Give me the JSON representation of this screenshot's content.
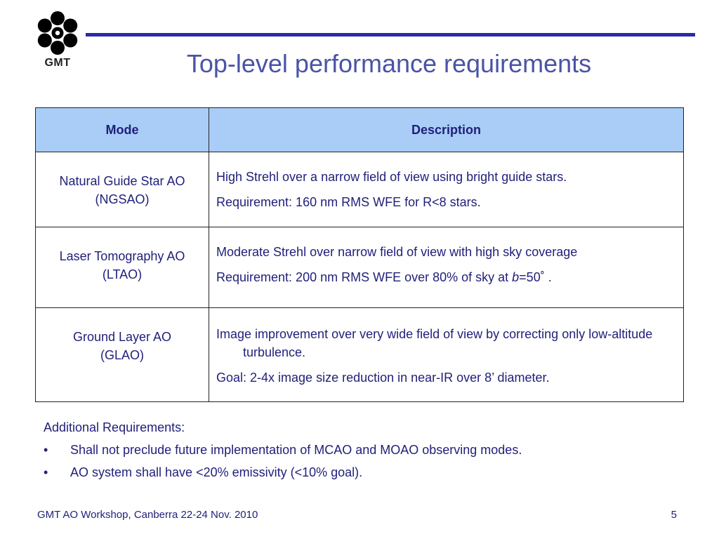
{
  "logo": {
    "text": "GMT"
  },
  "title": "Top-level performance requirements",
  "table": {
    "headers": [
      "Mode",
      "Description"
    ],
    "rows": [
      {
        "mode_line1": "Natural Guide Star AO",
        "mode_line2": "(NGSAO)",
        "desc": [
          "High Strehl over a narrow field of view using bright guide stars.",
          "Requirement: 160 nm RMS WFE for R<8 stars."
        ]
      },
      {
        "mode_line1": "Laser Tomography AO",
        "mode_line2": "(LTAO)",
        "desc": [
          "Moderate Strehl over narrow field of view with high sky coverage",
          "Requirement: 200 nm RMS WFE over 80% of sky at "
        ],
        "desc2_italic": "b",
        "desc2_tail": "=50˚ ."
      },
      {
        "mode_line1": "Ground Layer AO",
        "mode_line2": "(GLAO)",
        "desc": [
          "Image improvement over very wide field of view by correcting only low-altitude turbulence.",
          "Goal: 2-4x image size reduction in near-IR over 8’ diameter."
        ]
      }
    ]
  },
  "additional": {
    "heading": "Additional Requirements:",
    "bullet_char": "•",
    "items": [
      "Shall not preclude future implementation of MCAO and MOAO observing modes.",
      "AO system shall have <20% emissivity (<10% goal)."
    ]
  },
  "footer": {
    "text": "GMT AO Workshop, Canberra 22-24 Nov. 2010",
    "page": "5"
  }
}
